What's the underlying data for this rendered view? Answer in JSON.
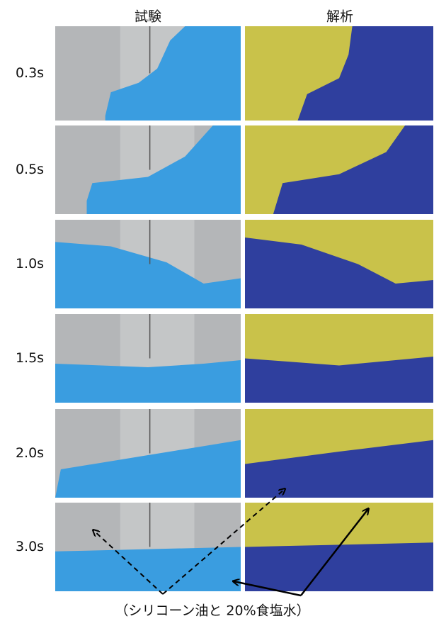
{
  "header": {
    "left": "試験",
    "right": "解析"
  },
  "rows": [
    {
      "label": "0.3s"
    },
    {
      "label": "0.5s"
    },
    {
      "label": "1.0s"
    },
    {
      "label": "1.5s"
    },
    {
      "label": "2.0s"
    },
    {
      "label": "3.0s"
    }
  ],
  "caption": "（シリコーン油と 20%食塩水）"
}
